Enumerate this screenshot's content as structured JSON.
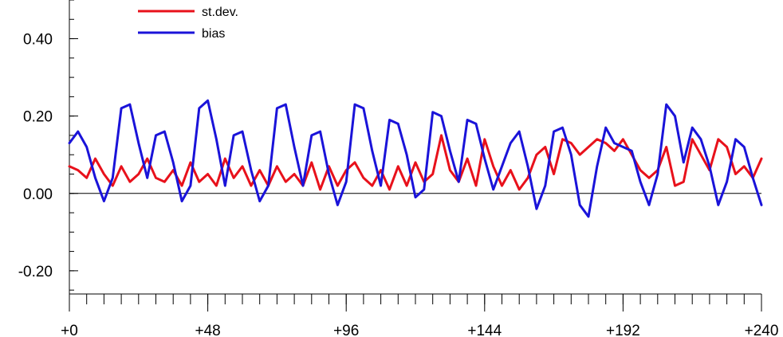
{
  "chart_data": {
    "type": "line",
    "title": "",
    "xlabel": "",
    "ylabel": "",
    "xlim": [
      0,
      240
    ],
    "ylim": [
      -0.26,
      0.5
    ],
    "x_ticks": [
      {
        "value": 0,
        "label": "+0"
      },
      {
        "value": 48,
        "label": "+48"
      },
      {
        "value": 96,
        "label": "+96"
      },
      {
        "value": 144,
        "label": "+144"
      },
      {
        "value": 192,
        "label": "+192"
      },
      {
        "value": 240,
        "label": "+240"
      }
    ],
    "y_ticks": [
      {
        "value": 0.4,
        "label": "0.40"
      },
      {
        "value": 0.2,
        "label": "0.20"
      },
      {
        "value": 0.0,
        "label": "0.00"
      },
      {
        "value": -0.2,
        "label": "-0.20"
      }
    ],
    "x_minor_step": 6,
    "y_minor_step": 0.05,
    "reference_line": 0.0,
    "legend_position": "top-left",
    "series": [
      {
        "name": "st.dev.",
        "color": "#e8111b",
        "x": [
          0,
          3,
          6,
          9,
          12,
          15,
          18,
          21,
          24,
          27,
          30,
          33,
          36,
          39,
          42,
          45,
          48,
          51,
          54,
          57,
          60,
          63,
          66,
          69,
          72,
          75,
          78,
          81,
          84,
          87,
          90,
          93,
          96,
          99,
          102,
          105,
          108,
          111,
          114,
          117,
          120,
          123,
          126,
          129,
          132,
          135,
          138,
          141,
          144,
          147,
          150,
          153,
          156,
          159,
          162,
          165,
          168,
          171,
          174,
          177,
          180,
          183,
          186,
          189,
          192,
          195,
          198,
          201,
          204,
          207,
          210,
          213,
          216,
          219,
          222,
          225,
          228,
          231,
          234,
          237,
          240
        ],
        "values": [
          0.07,
          0.06,
          0.04,
          0.09,
          0.05,
          0.02,
          0.07,
          0.03,
          0.05,
          0.09,
          0.04,
          0.03,
          0.06,
          0.02,
          0.08,
          0.03,
          0.05,
          0.02,
          0.09,
          0.04,
          0.07,
          0.02,
          0.06,
          0.02,
          0.07,
          0.03,
          0.05,
          0.02,
          0.08,
          0.01,
          0.07,
          0.02,
          0.06,
          0.08,
          0.04,
          0.02,
          0.06,
          0.01,
          0.07,
          0.02,
          0.08,
          0.03,
          0.05,
          0.15,
          0.06,
          0.03,
          0.09,
          0.02,
          0.14,
          0.07,
          0.02,
          0.06,
          0.01,
          0.04,
          0.1,
          0.12,
          0.05,
          0.14,
          0.13,
          0.1,
          0.12,
          0.14,
          0.13,
          0.11,
          0.14,
          0.1,
          0.06,
          0.04,
          0.06,
          0.12,
          0.02,
          0.03,
          0.14,
          0.1,
          0.06,
          0.14,
          0.12,
          0.05,
          0.07,
          0.04,
          0.09
        ]
      },
      {
        "name": "bias",
        "color": "#1a13d9",
        "x": [
          0,
          3,
          6,
          9,
          12,
          15,
          18,
          21,
          24,
          27,
          30,
          33,
          36,
          39,
          42,
          45,
          48,
          51,
          54,
          57,
          60,
          63,
          66,
          69,
          72,
          75,
          78,
          81,
          84,
          87,
          90,
          93,
          96,
          99,
          102,
          105,
          108,
          111,
          114,
          117,
          120,
          123,
          126,
          129,
          132,
          135,
          138,
          141,
          144,
          147,
          150,
          153,
          156,
          159,
          162,
          165,
          168,
          171,
          174,
          177,
          180,
          183,
          186,
          189,
          192,
          195,
          198,
          201,
          204,
          207,
          210,
          213,
          216,
          219,
          222,
          225,
          228,
          231,
          234,
          237,
          240
        ],
        "values": [
          0.13,
          0.16,
          0.12,
          0.04,
          -0.02,
          0.04,
          0.22,
          0.23,
          0.13,
          0.04,
          0.15,
          0.16,
          0.08,
          -0.02,
          0.02,
          0.22,
          0.24,
          0.14,
          0.02,
          0.15,
          0.16,
          0.06,
          -0.02,
          0.02,
          0.22,
          0.23,
          0.12,
          0.02,
          0.15,
          0.16,
          0.05,
          -0.03,
          0.03,
          0.23,
          0.22,
          0.11,
          0.02,
          0.19,
          0.18,
          0.1,
          -0.01,
          0.01,
          0.21,
          0.2,
          0.11,
          0.03,
          0.19,
          0.18,
          0.09,
          0.01,
          0.07,
          0.13,
          0.16,
          0.07,
          -0.04,
          0.02,
          0.16,
          0.17,
          0.1,
          -0.03,
          -0.06,
          0.07,
          0.17,
          0.13,
          0.12,
          0.11,
          0.03,
          -0.03,
          0.05,
          0.23,
          0.2,
          0.08,
          0.17,
          0.14,
          0.07,
          -0.03,
          0.03,
          0.14,
          0.12,
          0.04,
          -0.03
        ]
      }
    ]
  }
}
